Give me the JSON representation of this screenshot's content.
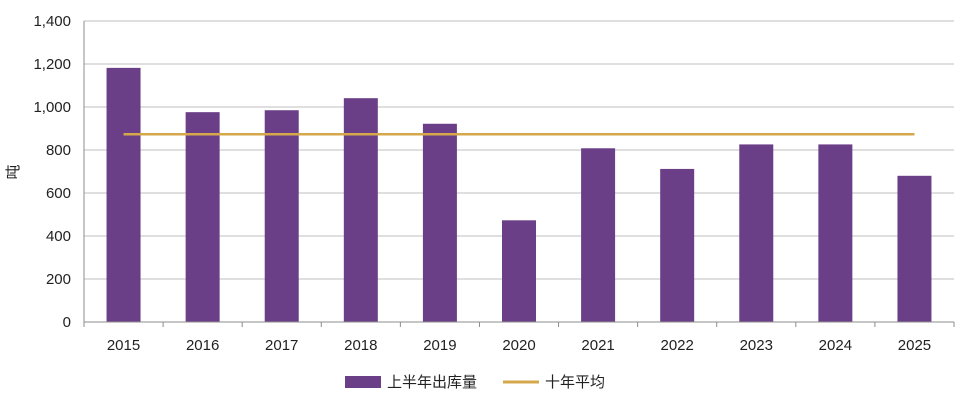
{
  "chart_data": {
    "type": "bar",
    "categories": [
      "2015",
      "2016",
      "2017",
      "2018",
      "2019",
      "2020",
      "2021",
      "2022",
      "2023",
      "2024",
      "2025"
    ],
    "series": [
      {
        "name": "上半年出库量",
        "type": "bar",
        "color": "#6b3f87",
        "values": [
          1182,
          976,
          985,
          1041,
          922,
          473,
          808,
          712,
          826,
          826,
          680
        ]
      },
      {
        "name": "十年平均",
        "type": "line",
        "color": "#d4a84b",
        "values": [
          873,
          873,
          873,
          873,
          873,
          873,
          873,
          873,
          873,
          873,
          873
        ]
      }
    ],
    "ylabel": "吨",
    "ylim": [
      0,
      1400
    ],
    "y_ticks": [
      "0",
      "200",
      "400",
      "600",
      "800",
      "1,000",
      "1,200",
      "1,400"
    ],
    "grid": true,
    "legend_position": "bottom-center"
  }
}
